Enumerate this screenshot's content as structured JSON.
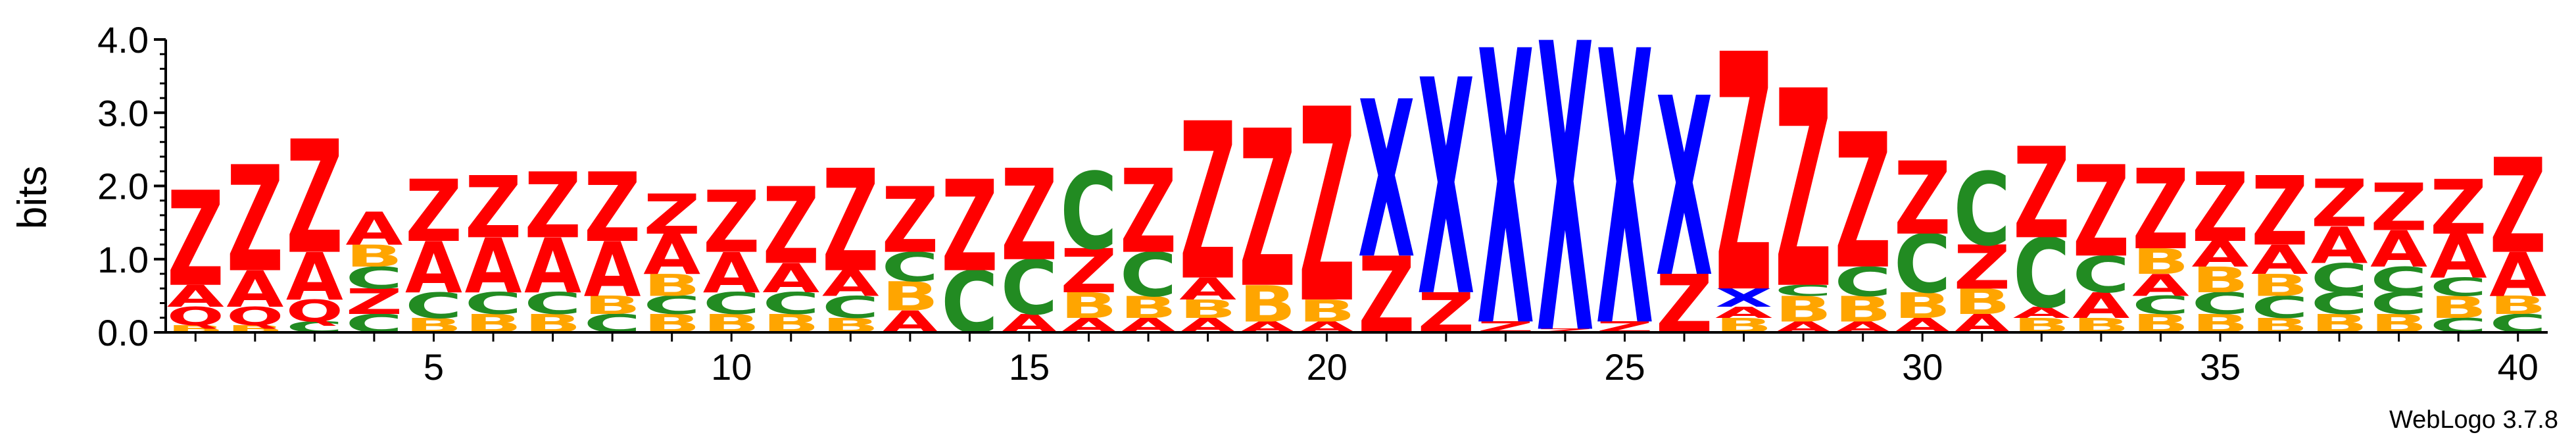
{
  "chart_data": {
    "type": "sequence-logo",
    "ylabel": "bits",
    "ylim": [
      0,
      4.0
    ],
    "y_ticks": [
      "0.0",
      "1.0",
      "2.0",
      "3.0",
      "4.0"
    ],
    "x_ticks": [
      5,
      10,
      15,
      20,
      25,
      30,
      35,
      40
    ],
    "colors": {
      "Z": "#ff0000",
      "A": "#ff0000",
      "X": "#0000ff",
      "C": "#228b22",
      "B": "#ffa500",
      "Q": "#ff0000"
    },
    "positions": [
      {
        "pos": 1,
        "stack": [
          [
            "B",
            0.1
          ],
          [
            "Q",
            0.25
          ],
          [
            "A",
            0.3
          ],
          [
            "Z",
            1.3
          ]
        ]
      },
      {
        "pos": 2,
        "stack": [
          [
            "B",
            0.1
          ],
          [
            "Q",
            0.25
          ],
          [
            "A",
            0.5
          ],
          [
            "Z",
            1.45
          ]
        ]
      },
      {
        "pos": 3,
        "stack": [
          [
            "C",
            0.15
          ],
          [
            "Q",
            0.3
          ],
          [
            "A",
            0.65
          ],
          [
            "Z",
            1.55
          ]
        ]
      },
      {
        "pos": 4,
        "stack": [
          [
            "C",
            0.25
          ],
          [
            "Z",
            0.35
          ],
          [
            "C",
            0.3
          ],
          [
            "B",
            0.3
          ],
          [
            "A",
            0.45
          ]
        ]
      },
      {
        "pos": 5,
        "stack": [
          [
            "B",
            0.2
          ],
          [
            "C",
            0.35
          ],
          [
            "A",
            0.7
          ],
          [
            "Z",
            0.85
          ]
        ]
      },
      {
        "pos": 6,
        "stack": [
          [
            "B",
            0.25
          ],
          [
            "C",
            0.3
          ],
          [
            "A",
            0.75
          ],
          [
            "Z",
            0.85
          ]
        ]
      },
      {
        "pos": 7,
        "stack": [
          [
            "B",
            0.25
          ],
          [
            "C",
            0.3
          ],
          [
            "A",
            0.75
          ],
          [
            "Z",
            0.9
          ]
        ]
      },
      {
        "pos": 8,
        "stack": [
          [
            "C",
            0.25
          ],
          [
            "B",
            0.25
          ],
          [
            "A",
            0.75
          ],
          [
            "Z",
            0.95
          ]
        ]
      },
      {
        "pos": 9,
        "stack": [
          [
            "B",
            0.25
          ],
          [
            "C",
            0.25
          ],
          [
            "B",
            0.3
          ],
          [
            "A",
            0.55
          ],
          [
            "Z",
            0.55
          ]
        ]
      },
      {
        "pos": 10,
        "stack": [
          [
            "B",
            0.25
          ],
          [
            "C",
            0.3
          ],
          [
            "A",
            0.55
          ],
          [
            "Z",
            0.85
          ]
        ]
      },
      {
        "pos": 11,
        "stack": [
          [
            "B",
            0.25
          ],
          [
            "C",
            0.3
          ],
          [
            "A",
            0.4
          ],
          [
            "Z",
            1.05
          ]
        ]
      },
      {
        "pos": 12,
        "stack": [
          [
            "B",
            0.2
          ],
          [
            "C",
            0.3
          ],
          [
            "A",
            0.35
          ],
          [
            "Z",
            1.4
          ]
        ]
      },
      {
        "pos": 13,
        "stack": [
          [
            "A",
            0.3
          ],
          [
            "B",
            0.4
          ],
          [
            "C",
            0.4
          ],
          [
            "Z",
            0.9
          ]
        ]
      },
      {
        "pos": 14,
        "stack": [
          [
            "C",
            0.85
          ],
          [
            "Z",
            1.25
          ]
        ]
      },
      {
        "pos": 15,
        "stack": [
          [
            "A",
            0.25
          ],
          [
            "C",
            0.75
          ],
          [
            "Z",
            1.25
          ]
        ]
      },
      {
        "pos": 16,
        "stack": [
          [
            "A",
            0.2
          ],
          [
            "B",
            0.35
          ],
          [
            "Z",
            0.6
          ],
          [
            "C",
            1.05
          ]
        ]
      },
      {
        "pos": 17,
        "stack": [
          [
            "A",
            0.2
          ],
          [
            "B",
            0.3
          ],
          [
            "C",
            0.6
          ],
          [
            "Z",
            1.15
          ]
        ]
      },
      {
        "pos": 18,
        "stack": [
          [
            "A",
            0.2
          ],
          [
            "B",
            0.25
          ],
          [
            "A",
            0.3
          ],
          [
            "Z",
            2.15
          ]
        ]
      },
      {
        "pos": 19,
        "stack": [
          [
            "A",
            0.15
          ],
          [
            "B",
            0.5
          ],
          [
            "Z",
            2.15
          ]
        ]
      },
      {
        "pos": 20,
        "stack": [
          [
            "A",
            0.15
          ],
          [
            "B",
            0.3
          ],
          [
            "Z",
            2.65
          ]
        ]
      },
      {
        "pos": 21,
        "stack": [
          [
            "Z",
            1.05
          ],
          [
            "X",
            2.15
          ]
        ]
      },
      {
        "pos": 22,
        "stack": [
          [
            "Z",
            0.55
          ],
          [
            "X",
            2.95
          ]
        ]
      },
      {
        "pos": 23,
        "stack": [
          [
            "Z",
            0.15
          ],
          [
            "X",
            3.75
          ]
        ]
      },
      {
        "pos": 24,
        "stack": [
          [
            "Z",
            0.05
          ],
          [
            "X",
            3.95
          ]
        ]
      },
      {
        "pos": 25,
        "stack": [
          [
            "Z",
            0.15
          ],
          [
            "X",
            3.75
          ]
        ]
      },
      {
        "pos": 26,
        "stack": [
          [
            "Z",
            0.8
          ],
          [
            "X",
            2.45
          ]
        ]
      },
      {
        "pos": 27,
        "stack": [
          [
            "B",
            0.2
          ],
          [
            "A",
            0.15
          ],
          [
            "X",
            0.25
          ],
          [
            "Z",
            3.25
          ]
        ]
      },
      {
        "pos": 28,
        "stack": [
          [
            "A",
            0.15
          ],
          [
            "B",
            0.35
          ],
          [
            "C",
            0.15
          ],
          [
            "Z",
            2.7
          ]
        ]
      },
      {
        "pos": 29,
        "stack": [
          [
            "A",
            0.15
          ],
          [
            "B",
            0.35
          ],
          [
            "C",
            0.4
          ],
          [
            "Z",
            1.85
          ]
        ]
      },
      {
        "pos": 30,
        "stack": [
          [
            "A",
            0.2
          ],
          [
            "B",
            0.35
          ],
          [
            "C",
            0.8
          ],
          [
            "Z",
            1.0
          ]
        ]
      },
      {
        "pos": 31,
        "stack": [
          [
            "A",
            0.25
          ],
          [
            "B",
            0.35
          ],
          [
            "Z",
            0.6
          ],
          [
            "C",
            1.0
          ]
        ]
      },
      {
        "pos": 32,
        "stack": [
          [
            "B",
            0.2
          ],
          [
            "A",
            0.15
          ],
          [
            "C",
            0.95
          ],
          [
            "Z",
            1.25
          ]
        ]
      },
      {
        "pos": 33,
        "stack": [
          [
            "B",
            0.2
          ],
          [
            "A",
            0.35
          ],
          [
            "C",
            0.5
          ],
          [
            "Z",
            1.25
          ]
        ]
      },
      {
        "pos": 34,
        "stack": [
          [
            "B",
            0.25
          ],
          [
            "C",
            0.25
          ],
          [
            "A",
            0.3
          ],
          [
            "B",
            0.35
          ],
          [
            "Z",
            1.1
          ]
        ]
      },
      {
        "pos": 35,
        "stack": [
          [
            "B",
            0.25
          ],
          [
            "C",
            0.3
          ],
          [
            "B",
            0.35
          ],
          [
            "A",
            0.35
          ],
          [
            "Z",
            0.95
          ]
        ]
      },
      {
        "pos": 36,
        "stack": [
          [
            "B",
            0.2
          ],
          [
            "C",
            0.3
          ],
          [
            "B",
            0.3
          ],
          [
            "A",
            0.4
          ],
          [
            "Z",
            0.95
          ]
        ]
      },
      {
        "pos": 37,
        "stack": [
          [
            "B",
            0.25
          ],
          [
            "C",
            0.3
          ],
          [
            "C",
            0.4
          ],
          [
            "A",
            0.5
          ],
          [
            "Z",
            0.65
          ]
        ]
      },
      {
        "pos": 38,
        "stack": [
          [
            "B",
            0.25
          ],
          [
            "C",
            0.3
          ],
          [
            "C",
            0.35
          ],
          [
            "A",
            0.5
          ],
          [
            "Z",
            0.65
          ]
        ]
      },
      {
        "pos": 39,
        "stack": [
          [
            "C",
            0.2
          ],
          [
            "B",
            0.3
          ],
          [
            "C",
            0.25
          ],
          [
            "A",
            0.6
          ],
          [
            "Z",
            0.75
          ]
        ]
      },
      {
        "pos": 40,
        "stack": [
          [
            "C",
            0.25
          ],
          [
            "B",
            0.25
          ],
          [
            "A",
            0.6
          ],
          [
            "Z",
            1.3
          ]
        ]
      }
    ]
  },
  "watermark": "WebLogo 3.7.8"
}
